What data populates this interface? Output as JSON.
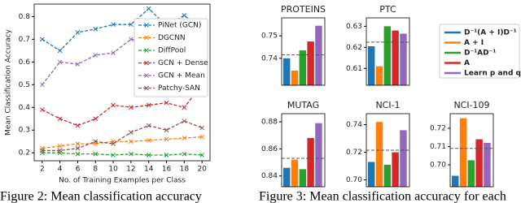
{
  "chart_data": [
    {
      "type": "line",
      "x_label": "No. of Training Examples per Class",
      "y_label": "Mean Classification Accuracy",
      "x": [
        2,
        4,
        6,
        8,
        10,
        12,
        14,
        16,
        18,
        20
      ],
      "xlim": [
        1.1,
        20.9
      ],
      "xticks": [
        2,
        4,
        6,
        8,
        10,
        12,
        14,
        16,
        18,
        20
      ],
      "ylim": [
        0.165,
        0.855
      ],
      "yticks": [
        0.2,
        0.3,
        0.4,
        0.5,
        0.6,
        0.7,
        0.8
      ],
      "series": [
        {
          "name": "PiNet (GCN)",
          "color": "#1f77b4",
          "values": [
            0.7,
            0.65,
            0.73,
            0.745,
            0.765,
            0.765,
            0.835,
            0.76,
            0.805,
            0.745
          ]
        },
        {
          "name": "DGCNN",
          "color": "#ff7f0e",
          "values": [
            0.22,
            0.23,
            0.24,
            0.24,
            0.25,
            0.25,
            0.255,
            0.26,
            0.265,
            0.27
          ]
        },
        {
          "name": "DiffPool",
          "color": "#2ca02c",
          "values": [
            0.2,
            0.2,
            0.195,
            0.195,
            0.19,
            0.195,
            0.19,
            0.19,
            0.195,
            0.19
          ]
        },
        {
          "name": "GCN + Dense",
          "color": "#d62728",
          "values": [
            0.39,
            0.35,
            0.32,
            0.35,
            0.41,
            0.4,
            0.41,
            0.42,
            0.4,
            0.5
          ]
        },
        {
          "name": "GCN + Mean",
          "color": "#9467bd",
          "values": [
            0.5,
            0.6,
            0.59,
            0.63,
            0.64,
            0.7,
            0.69,
            0.73,
            0.78,
            0.7
          ]
        },
        {
          "name": "Patchy-SAN",
          "color": "#8c564b",
          "values": [
            0.21,
            0.21,
            0.22,
            0.25,
            0.24,
            0.29,
            0.32,
            0.3,
            0.34,
            0.31
          ]
        }
      ]
    },
    {
      "type": "bar",
      "title": "PROTEINS",
      "values": [
        0.74,
        0.7345,
        0.7435,
        0.7475,
        0.7545
      ],
      "reference": 0.7415,
      "ylim": [
        0.728,
        0.758
      ],
      "yticks": [
        0.74,
        0.75
      ]
    },
    {
      "type": "bar",
      "title": "PTC",
      "values": [
        0.6205,
        0.611,
        0.63,
        0.628,
        0.6265
      ],
      "reference": 0.6225,
      "ylim": [
        0.602,
        0.634
      ],
      "yticks": [
        0.61,
        0.62,
        0.63
      ]
    },
    {
      "type": "bar",
      "title": "MUTAG",
      "values": [
        0.846,
        0.852,
        0.845,
        0.868,
        0.879
      ],
      "reference": 0.853,
      "ylim": [
        0.832,
        0.886
      ],
      "yticks": [
        0.84,
        0.86,
        0.88
      ]
    },
    {
      "type": "bar",
      "title": "NCI-1",
      "values": [
        0.713,
        0.742,
        0.711,
        0.72,
        0.736
      ],
      "reference": 0.7215,
      "ylim": [
        0.695,
        0.748
      ],
      "yticks": [
        {
          "value": 0.7,
          "label": "0.70"
        },
        0.72,
        0.74
      ]
    },
    {
      "type": "bar",
      "title": "NCI-109",
      "values": [
        0.694,
        0.7255,
        0.7025,
        0.714,
        0.712
      ],
      "reference": 0.709,
      "ylim": [
        0.688,
        0.728
      ],
      "yticks": [
        {
          "value": 0.7,
          "label": "0.70"
        },
        0.71,
        0.72
      ]
    }
  ],
  "legend": [
    {
      "name": "D⁻¹(A + I)D⁻¹",
      "color": "#1f77b4"
    },
    {
      "name": "A + I",
      "color": "#ff7f0e"
    },
    {
      "name": "D⁻¹AD⁻¹",
      "color": "#2ca02c"
    },
    {
      "name": "A",
      "color": "#d62728"
    },
    {
      "name": "Learn p and q",
      "color": "#9467bd"
    }
  ],
  "captions": [
    "Figure 2: Mean classification accuracy",
    "Figure 3: Mean classification accuracy for each"
  ]
}
